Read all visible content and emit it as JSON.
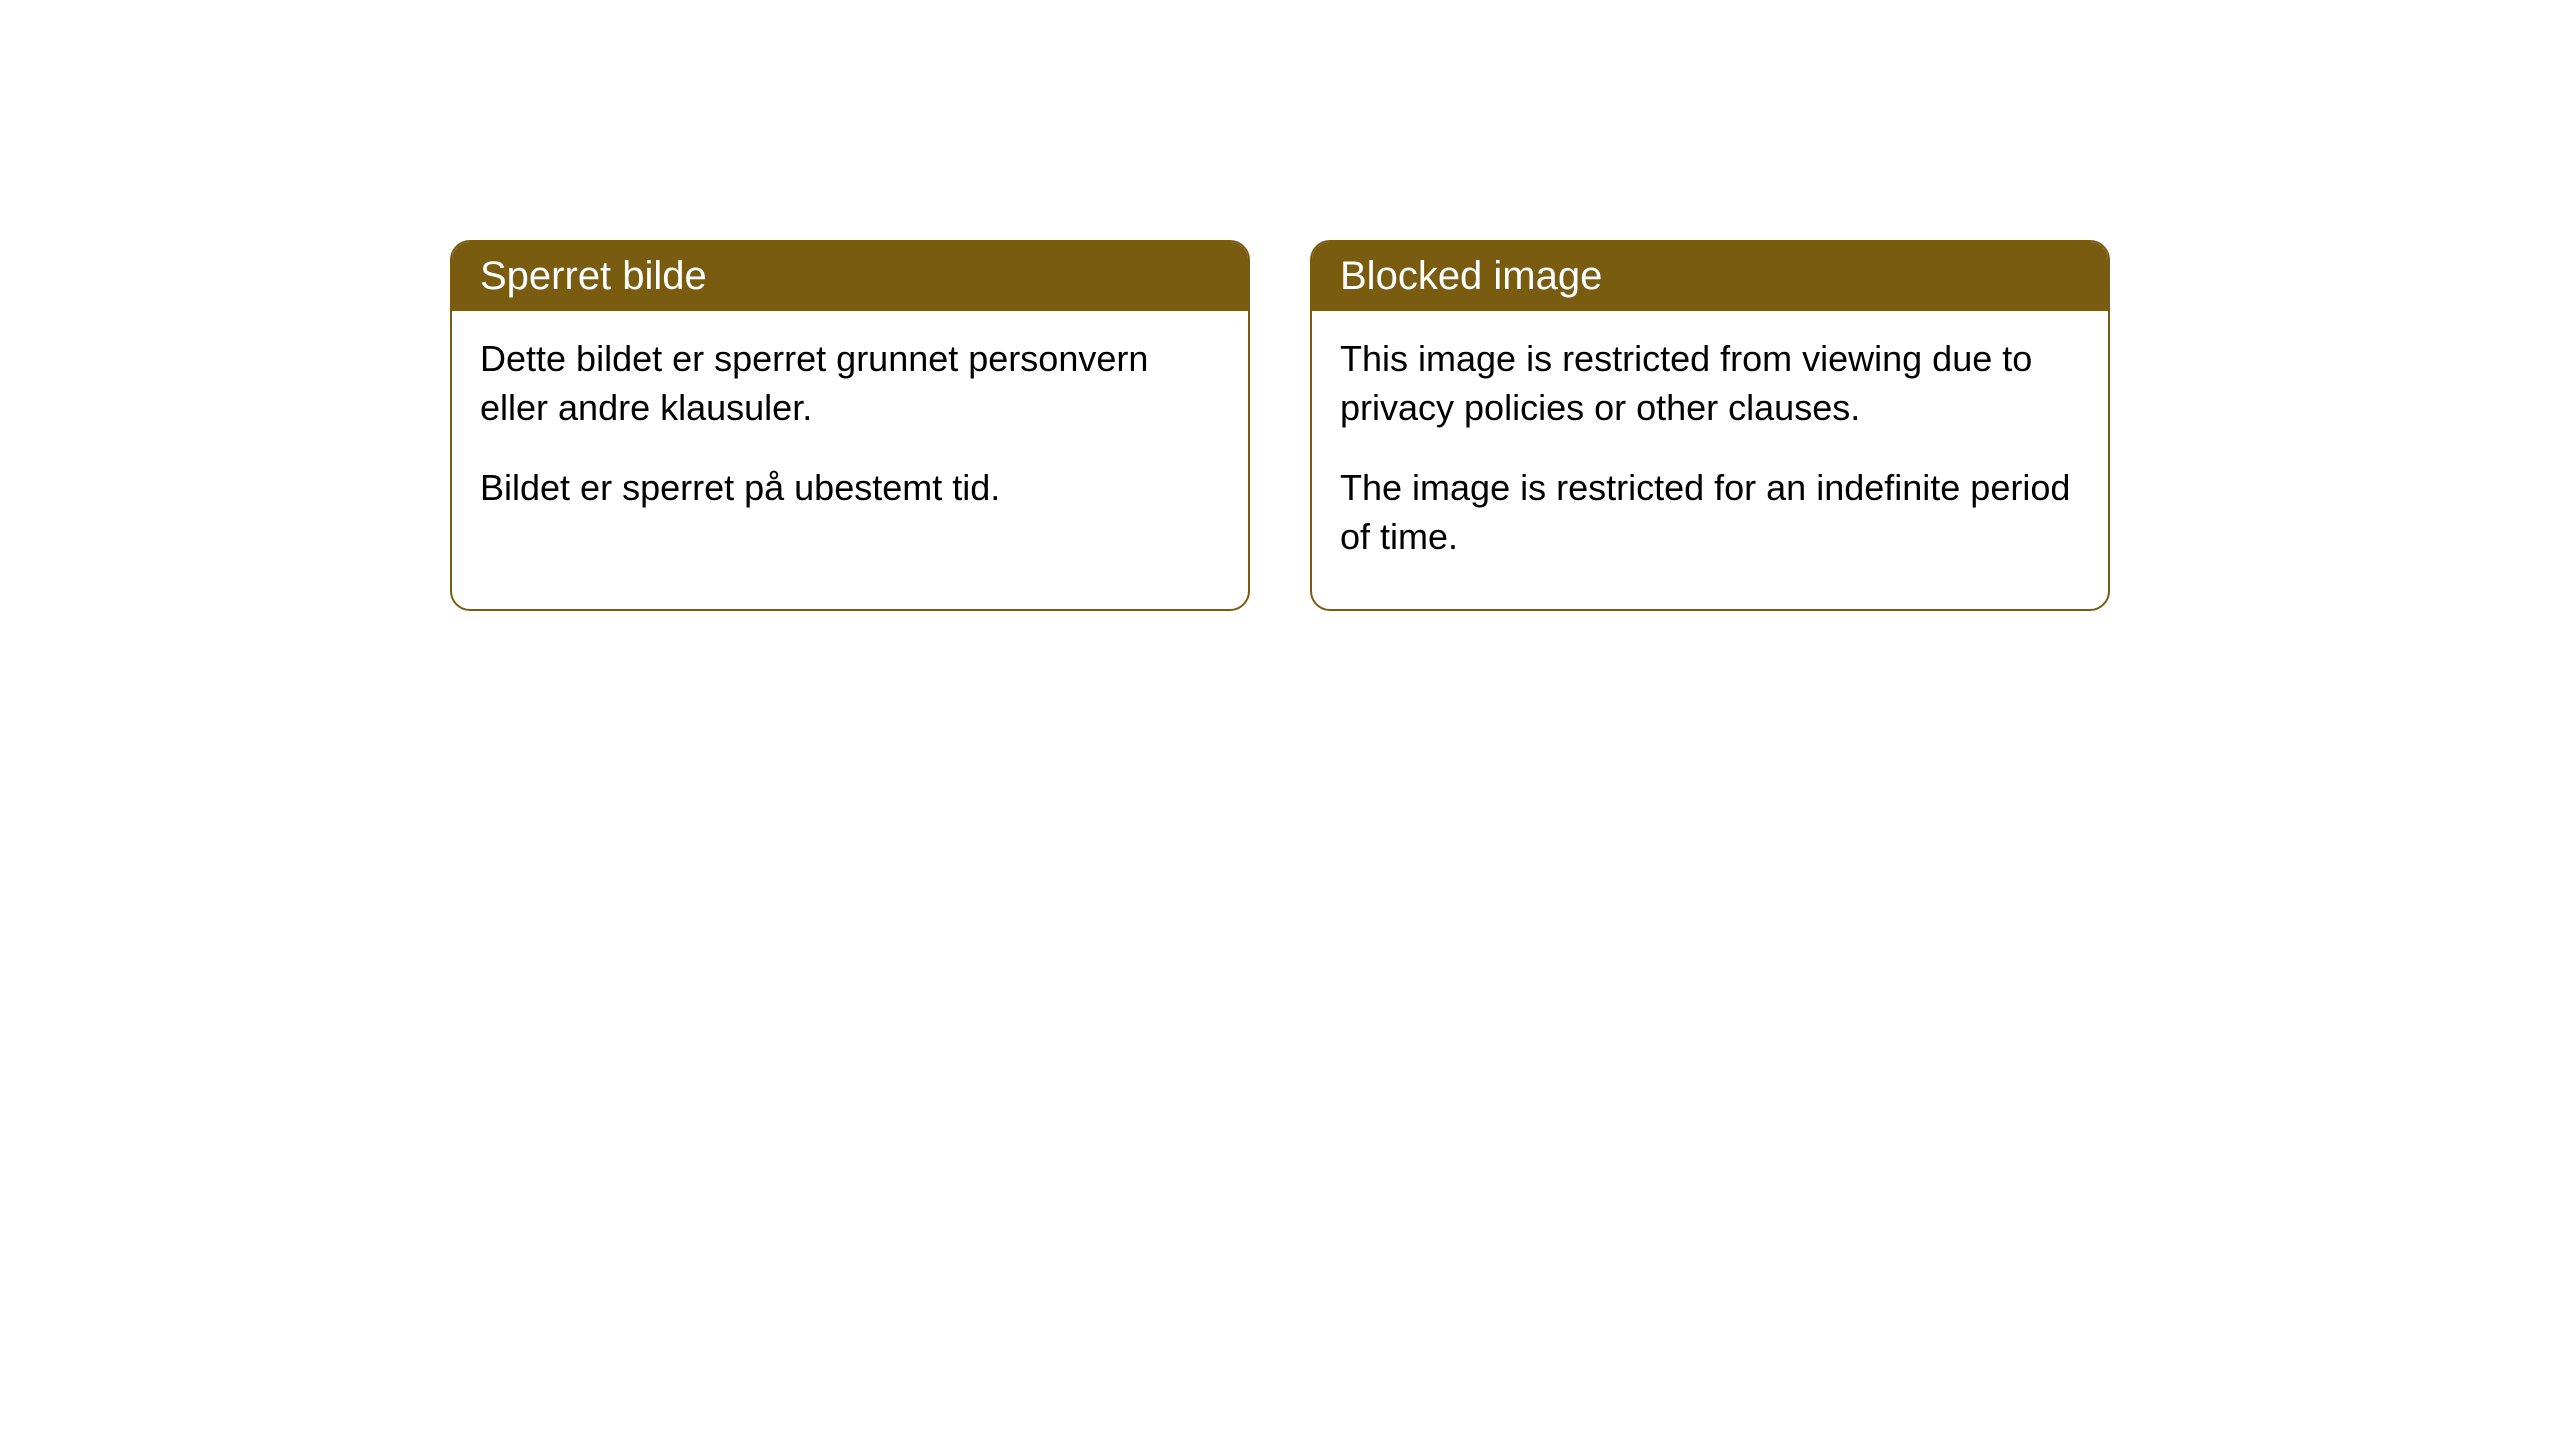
{
  "cards": {
    "left": {
      "title": "Sperret bilde",
      "paragraph1": "Dette bildet er sperret grunnet personvern eller andre klausuler.",
      "paragraph2": "Bildet er sperret på ubestemt tid."
    },
    "right": {
      "title": "Blocked image",
      "paragraph1": "This image is restricted from viewing due to privacy policies or other clauses.",
      "paragraph2": "The image is restricted for an indefinite period of time."
    }
  },
  "styling": {
    "header_bg_color": "#7a5c11",
    "header_text_color": "#ffffff",
    "border_color": "#7a5c11",
    "body_bg_color": "#ffffff",
    "body_text_color": "#000000",
    "border_radius": 20,
    "header_fontsize": 40,
    "body_fontsize": 36,
    "card_gap": 60
  }
}
